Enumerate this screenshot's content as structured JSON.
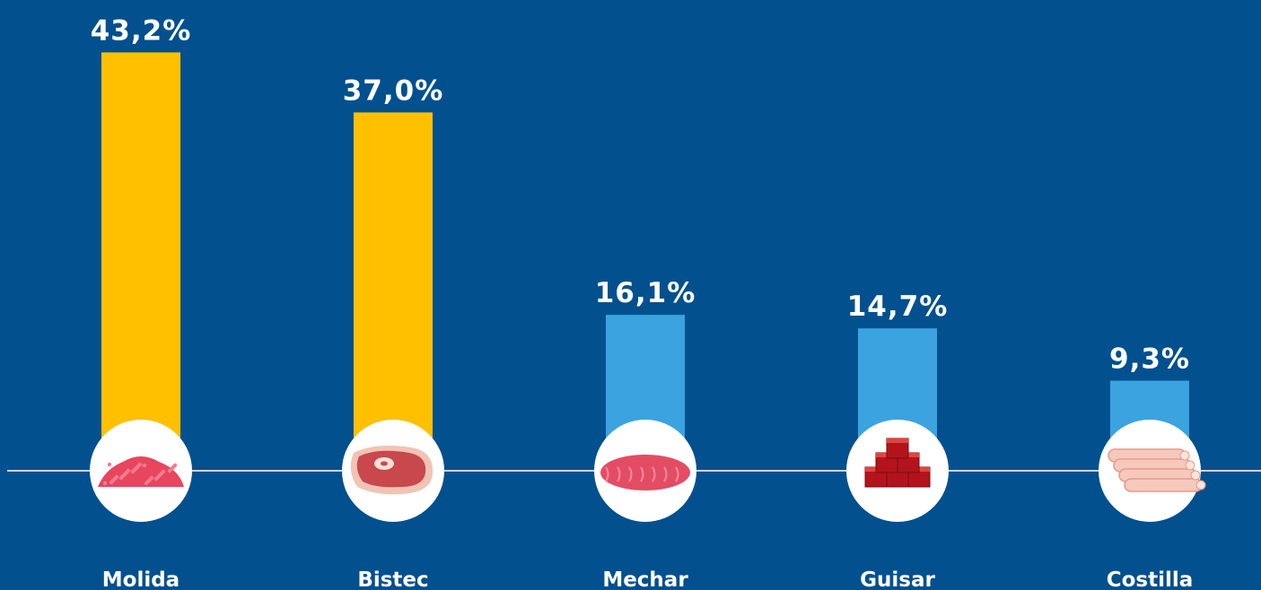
{
  "chart_data": {
    "type": "bar",
    "categories": [
      "Molida",
      "Bistec",
      "Mechar",
      "Guisar",
      "Costilla"
    ],
    "values": [
      43.2,
      37.0,
      16.1,
      14.7,
      9.3
    ],
    "value_labels": [
      "43,2%",
      "37,0%",
      "16,1%",
      "14,7%",
      "9,3%"
    ],
    "colors": [
      "#FFC000",
      "#FFC000",
      "#3BA3E0",
      "#3BA3E0",
      "#3BA3E0"
    ]
  }
}
